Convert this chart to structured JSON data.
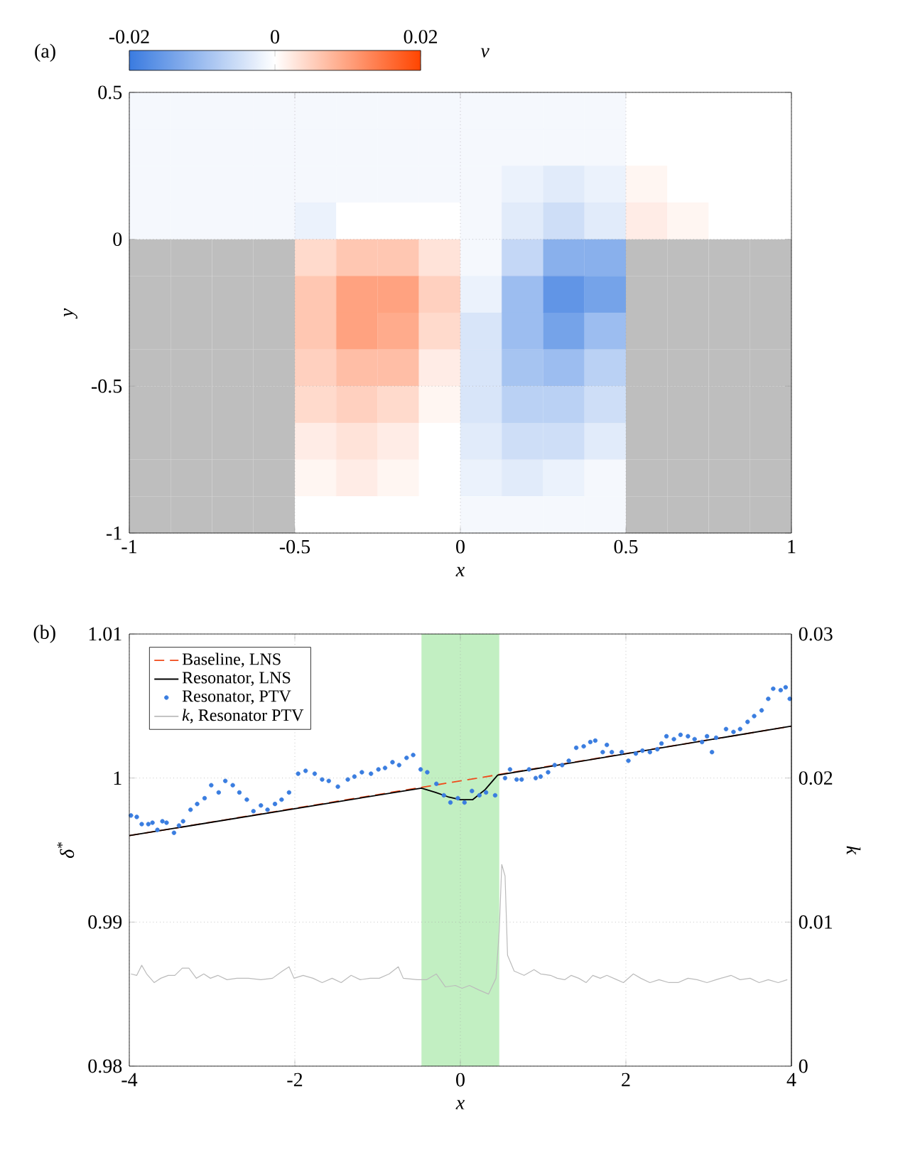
{
  "chart_data": [
    {
      "type": "heatmap",
      "title": "(a)",
      "xlabel": "x",
      "ylabel": "y",
      "clabel": "v",
      "x": [
        -0.9375,
        -0.8125,
        -0.6875,
        -0.5625,
        -0.4375,
        -0.3125,
        -0.1875,
        -0.0625,
        0.0625,
        0.1875,
        0.3125,
        0.4375,
        0.5625,
        0.6875,
        0.8125,
        0.9375
      ],
      "y": [
        0.4375,
        0.3125,
        0.1875,
        0.0625,
        -0.0625,
        -0.1875,
        -0.3125,
        -0.4375,
        -0.5625,
        -0.6875,
        -0.8125,
        -0.9375
      ],
      "xlim": [
        -1,
        1
      ],
      "ylim": [
        -1,
        0.5
      ],
      "xticks": [
        -1,
        -0.5,
        0,
        0.5,
        1
      ],
      "yticks": [
        -1,
        -0.5,
        0,
        0.5
      ],
      "clim": [
        -0.02,
        0.02
      ],
      "cticks": [
        -0.02,
        0,
        0.02
      ],
      "grid": true,
      "cells": [
        [
          -0.001,
          -0.001,
          -0.001,
          -0.001,
          -0.001,
          -0.001,
          -0.001,
          -0.001,
          -0.001,
          -0.001,
          -0.001,
          -0.001,
          0,
          0,
          0,
          0
        ],
        [
          -0.001,
          -0.001,
          -0.001,
          -0.001,
          -0.001,
          -0.001,
          -0.001,
          -0.001,
          -0.001,
          -0.001,
          -0.001,
          -0.001,
          0,
          0,
          0,
          0
        ],
        [
          -0.001,
          -0.001,
          -0.001,
          -0.001,
          -0.001,
          -0.001,
          -0.001,
          -0.001,
          -0.001,
          -0.002,
          -0.003,
          -0.002,
          0.001,
          0,
          0,
          0
        ],
        [
          -0.001,
          -0.001,
          -0.001,
          -0.001,
          -0.002,
          0,
          0,
          0,
          -0.001,
          -0.003,
          -0.005,
          -0.003,
          0.002,
          0.001,
          0,
          0
        ],
        [
          null,
          null,
          null,
          null,
          0.004,
          0.006,
          0.006,
          0.003,
          -0.001,
          -0.006,
          -0.012,
          -0.012,
          null,
          null,
          null,
          null
        ],
        [
          null,
          null,
          null,
          null,
          0.006,
          0.01,
          0.01,
          0.005,
          -0.002,
          -0.01,
          -0.016,
          -0.014,
          null,
          null,
          null,
          null
        ],
        [
          null,
          null,
          null,
          null,
          0.006,
          0.01,
          0.009,
          0.004,
          -0.004,
          -0.01,
          -0.014,
          -0.01,
          null,
          null,
          null,
          null
        ],
        [
          null,
          null,
          null,
          null,
          0.005,
          0.007,
          0.007,
          0.002,
          -0.004,
          -0.009,
          -0.01,
          -0.007,
          null,
          null,
          null,
          null
        ],
        [
          null,
          null,
          null,
          null,
          0.004,
          0.005,
          0.004,
          0.001,
          -0.004,
          -0.007,
          -0.007,
          -0.005,
          null,
          null,
          null,
          null
        ],
        [
          null,
          null,
          null,
          null,
          0.002,
          0.003,
          0.002,
          0,
          -0.003,
          -0.005,
          -0.005,
          -0.003,
          null,
          null,
          null,
          null
        ],
        [
          null,
          null,
          null,
          null,
          0.001,
          0.002,
          0.001,
          0,
          -0.002,
          -0.003,
          -0.002,
          -0.001,
          null,
          null,
          null,
          null
        ],
        [
          null,
          null,
          null,
          null,
          0,
          0,
          0,
          0,
          -0.001,
          -0.001,
          -0.001,
          -0.001,
          null,
          null,
          null,
          null
        ]
      ]
    },
    {
      "type": "line",
      "title": "(b)",
      "xlabel": "x",
      "ylabel": "δ$^{*}$",
      "y2label": "k",
      "xlim": [
        -4,
        4
      ],
      "ylim": [
        0.98,
        1.01
      ],
      "y2lim": [
        0,
        0.03
      ],
      "xticks": [
        -4,
        -2,
        0,
        2,
        4
      ],
      "yticks": [
        0.98,
        0.99,
        1,
        1.01
      ],
      "y2ticks": [
        0,
        0.01,
        0.02,
        0.03
      ],
      "grid": true,
      "legend": "top left",
      "bands": [
        {
          "axis": "x",
          "from": -0.47,
          "to": 0.47,
          "color": "#c2efc2"
        }
      ],
      "series": [
        {
          "name": "Baseline, LNS",
          "type": "line",
          "line_style": "dashed",
          "color": "#f04a1a",
          "x": [
            -4,
            4
          ],
          "values": [
            0.996,
            1.0036
          ]
        },
        {
          "name": "Resonator, LNS",
          "type": "line",
          "color": "#000000",
          "x": [
            -4,
            -0.47,
            -0.3,
            -0.15,
            0,
            0.15,
            0.3,
            0.45,
            4
          ],
          "values": [
            0.996,
            0.9993,
            0.999,
            0.9987,
            0.9985,
            0.9985,
            0.9992,
            1.0002,
            1.0036
          ]
        },
        {
          "name": "Resonator, PTV",
          "type": "scatter",
          "color": "#3a7de0",
          "x": [
            -3.98,
            -3.91,
            -3.85,
            -3.77,
            -3.72,
            -3.66,
            -3.6,
            -3.55,
            -3.46,
            -3.4,
            -3.35,
            -3.26,
            -3.18,
            -3.09,
            -3.01,
            -2.92,
            -2.84,
            -2.75,
            -2.67,
            -2.58,
            -2.5,
            -2.41,
            -2.33,
            -2.24,
            -2.16,
            -2.07,
            -1.96,
            -1.87,
            -1.76,
            -1.67,
            -1.59,
            -1.48,
            -1.36,
            -1.28,
            -1.19,
            -1.08,
            -0.99,
            -0.91,
            -0.82,
            -0.74,
            -0.65,
            -0.57,
            -0.48,
            -0.4,
            -0.29,
            -0.2,
            -0.12,
            -0.03,
            0.05,
            0.14,
            0.23,
            0.31,
            0.42,
            0.54,
            0.6,
            0.68,
            0.74,
            0.83,
            0.91,
            0.97,
            1.06,
            1.14,
            1.23,
            1.31,
            1.4,
            1.49,
            1.57,
            1.63,
            1.72,
            1.77,
            1.83,
            1.95,
            2.03,
            2.12,
            2.2,
            2.29,
            2.38,
            2.43,
            2.49,
            2.58,
            2.66,
            2.75,
            2.83,
            2.92,
            2.98,
            3.04,
            3.09,
            3.21,
            3.3,
            3.38,
            3.47,
            3.55,
            3.64,
            3.72,
            3.78,
            3.87,
            3.93,
            3.98
          ],
          "values": [
            0.9974,
            0.9973,
            0.9968,
            0.9968,
            0.9969,
            0.9964,
            0.997,
            0.9969,
            0.9962,
            0.9967,
            0.997,
            0.9978,
            0.9982,
            0.9986,
            0.9995,
            0.999,
            0.9998,
            0.9995,
            0.999,
            0.9985,
            0.9977,
            0.9981,
            0.9978,
            0.9982,
            0.9985,
            0.999,
            1.0003,
            1.0005,
            1.0003,
            0.9999,
            0.9998,
            0.9994,
            0.9999,
            1.0001,
            1.0004,
            1.0003,
            1.0006,
            1.0007,
            1.0011,
            1.0009,
            1.0014,
            1.0016,
            1.0006,
            1.0004,
            0.9996,
            0.9988,
            0.9983,
            0.9986,
            0.9983,
            0.9991,
            0.9988,
            0.999,
            0.9988,
            1.0,
            1.0006,
            0.9999,
            0.9999,
            1.0006,
            1.0,
            1.0001,
            1.0004,
            1.0009,
            1.0009,
            1.0012,
            1.0021,
            1.0022,
            1.0025,
            1.0026,
            1.0018,
            1.0023,
            1.0018,
            1.0018,
            1.0012,
            1.0017,
            1.0019,
            1.0018,
            1.002,
            1.0024,
            1.0029,
            1.0027,
            1.003,
            1.0029,
            1.0027,
            1.0025,
            1.0029,
            1.0018,
            1.0028,
            1.0034,
            1.0032,
            1.0034,
            1.0039,
            1.0043,
            1.0047,
            1.0055,
            1.0062,
            1.0061,
            1.0063,
            1.0055
          ]
        },
        {
          "name": "*k*, Resonator PTV",
          "type": "line",
          "axis": "y2",
          "color": "#bbbbbb",
          "x": [
            -3.98,
            -3.91,
            -3.85,
            -3.79,
            -3.7,
            -3.62,
            -3.53,
            -3.45,
            -3.36,
            -3.28,
            -3.19,
            -3.1,
            -3.02,
            -2.93,
            -2.82,
            -2.7,
            -2.56,
            -2.41,
            -2.27,
            -2.15,
            -2.07,
            -2.01,
            -1.9,
            -1.78,
            -1.67,
            -1.55,
            -1.44,
            -1.32,
            -1.21,
            -1.09,
            -0.98,
            -0.86,
            -0.75,
            -0.69,
            -0.52,
            -0.41,
            -0.29,
            -0.18,
            -0.06,
            0.02,
            0.11,
            0.22,
            0.34,
            0.43,
            0.47,
            0.5,
            0.54,
            0.57,
            0.65,
            0.77,
            0.89,
            0.97,
            1.09,
            1.17,
            1.26,
            1.34,
            1.43,
            1.52,
            1.6,
            1.69,
            1.77,
            1.89,
            1.97,
            2.09,
            2.18,
            2.29,
            2.4,
            2.52,
            2.63,
            2.75,
            2.86,
            2.98,
            3.09,
            3.27,
            3.38,
            3.5,
            3.61,
            3.72,
            3.84,
            3.95
          ],
          "values": [
            0.0064,
            0.0063,
            0.007,
            0.0064,
            0.0058,
            0.0061,
            0.0063,
            0.0063,
            0.0068,
            0.0068,
            0.0061,
            0.0064,
            0.0061,
            0.0063,
            0.006,
            0.0061,
            0.0061,
            0.006,
            0.0061,
            0.0066,
            0.0069,
            0.0061,
            0.0063,
            0.0061,
            0.0058,
            0.0061,
            0.0058,
            0.0063,
            0.006,
            0.0061,
            0.0061,
            0.0064,
            0.0069,
            0.0061,
            0.006,
            0.006,
            0.0064,
            0.0055,
            0.0056,
            0.0054,
            0.0056,
            0.0053,
            0.005,
            0.0061,
            0.0094,
            0.014,
            0.0132,
            0.0077,
            0.0066,
            0.0063,
            0.0067,
            0.0064,
            0.0063,
            0.0061,
            0.006,
            0.0063,
            0.0061,
            0.0058,
            0.0063,
            0.0061,
            0.0063,
            0.006,
            0.0058,
            0.0064,
            0.0061,
            0.0058,
            0.006,
            0.0058,
            0.0058,
            0.0061,
            0.006,
            0.0058,
            0.006,
            0.0063,
            0.006,
            0.0061,
            0.0058,
            0.006,
            0.0058,
            0.006
          ]
        }
      ]
    }
  ]
}
